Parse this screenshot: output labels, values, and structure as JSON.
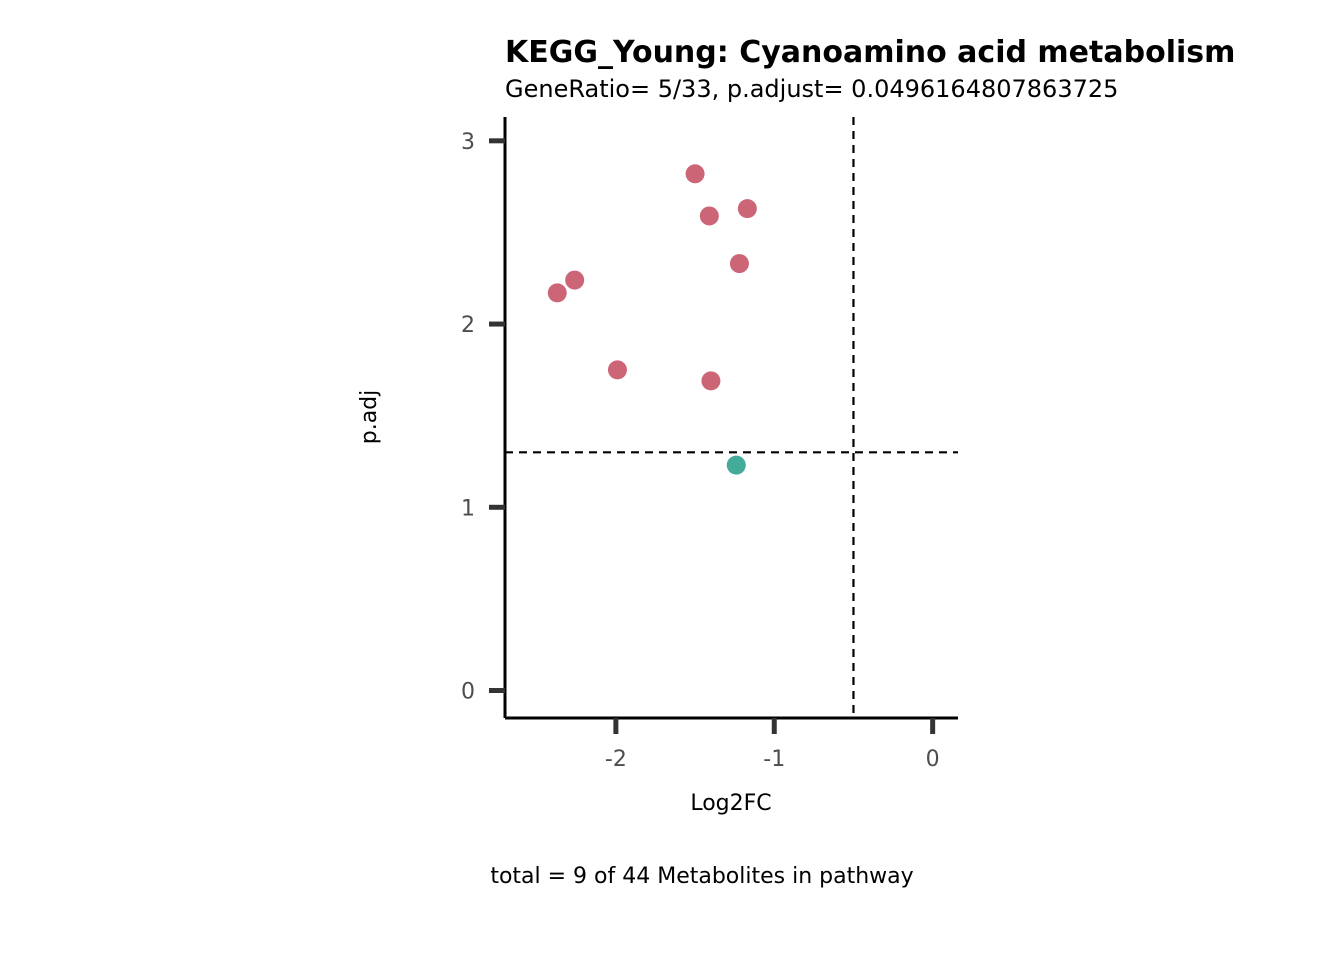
{
  "chart_data": {
    "type": "scatter",
    "title": "KEGG_Young: Cyanoamino acid metabolism",
    "subtitle": "GeneRatio= 5/33, p.adjust= 0.0496164807863725",
    "xlabel": "Log2FC",
    "ylabel": "p.adj",
    "caption": "total = 9 of 44 Metabolites in pathway",
    "xlim": [
      -2.7,
      0.16
    ],
    "ylim": [
      -0.15,
      3.13
    ],
    "x_ticks": [
      -2,
      -1,
      0
    ],
    "y_ticks": [
      0,
      1,
      2,
      3
    ],
    "x_tick_labels": [
      "-2",
      "-1",
      "0"
    ],
    "y_tick_labels": [
      "0",
      "1",
      "2",
      "3"
    ],
    "grid": false,
    "legend": "none",
    "thresholds": {
      "x": -0.5,
      "y": 1.3
    },
    "colors": {
      "significant": "#cc6677",
      "not_significant": "#44aa99"
    },
    "points": [
      {
        "x": -1.5,
        "y": 2.82,
        "group": "significant"
      },
      {
        "x": -1.17,
        "y": 2.63,
        "group": "significant"
      },
      {
        "x": -1.41,
        "y": 2.59,
        "group": "significant"
      },
      {
        "x": -1.22,
        "y": 2.33,
        "group": "significant"
      },
      {
        "x": -2.26,
        "y": 2.24,
        "group": "significant"
      },
      {
        "x": -2.37,
        "y": 2.17,
        "group": "significant"
      },
      {
        "x": -1.99,
        "y": 1.75,
        "group": "significant"
      },
      {
        "x": -1.4,
        "y": 1.69,
        "group": "significant"
      },
      {
        "x": -1.24,
        "y": 1.23,
        "group": "not_significant"
      }
    ]
  }
}
